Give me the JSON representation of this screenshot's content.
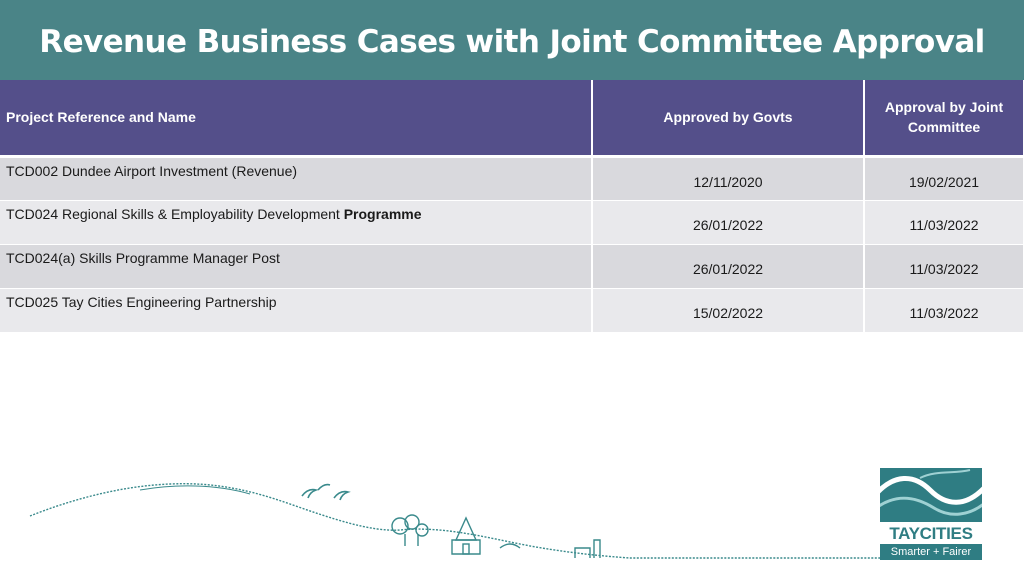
{
  "title": "Revenue Business Cases with Joint Committee Approval",
  "table": {
    "headers": {
      "name": "Project Reference and Name",
      "govts": "Approved by Govts",
      "joint": "Approval by Joint Committee"
    },
    "rows": [
      {
        "name": "TCD002 Dundee Airport Investment (Revenue)",
        "name_bold": "",
        "govts": "12/11/2020",
        "joint": "19/02/2021"
      },
      {
        "name": "TCD024 Regional Skills & Employability Development ",
        "name_bold": "Programme",
        "govts": "26/01/2022",
        "joint": "11/03/2022"
      },
      {
        "name": "TCD024(a) Skills Programme Manager Post",
        "name_bold": "",
        "govts": "26/01/2022",
        "joint": "11/03/2022"
      },
      {
        "name": "TCD025 Tay Cities Engineering Partnership",
        "name_bold": "",
        "govts": "15/02/2022",
        "joint": "11/03/2022"
      }
    ]
  },
  "logo": {
    "brand": "TAYCITIES",
    "tagline": "Smarter + Fairer"
  },
  "colors": {
    "title_bar": "#4a8487",
    "header_row": "#544f8a",
    "row_odd": "#d9d9dd",
    "row_even": "#e9e9ec",
    "brand_teal": "#2f7d83"
  }
}
